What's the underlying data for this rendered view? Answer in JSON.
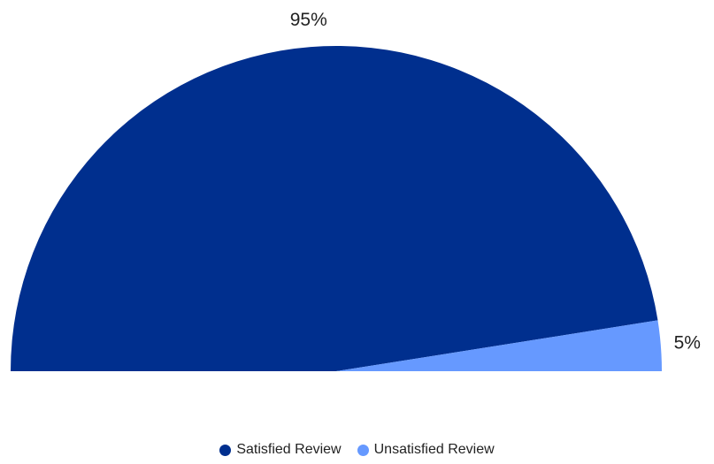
{
  "chart_data": {
    "type": "pie",
    "sweep_degrees": 180,
    "categories": [
      "Satisfied Review",
      "Unsatisfied Review"
    ],
    "values": [
      95,
      5
    ],
    "value_labels": [
      "95%",
      "5%"
    ],
    "colors": [
      "#002f8e",
      "#6699ff"
    ],
    "legend": "bottom"
  }
}
